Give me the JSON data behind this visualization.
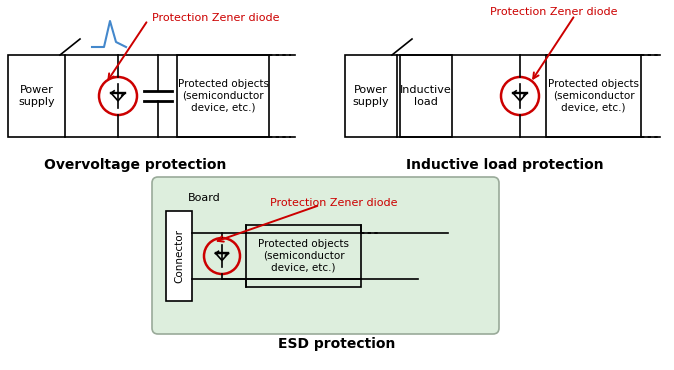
{
  "title1": "Overvoltage protection",
  "title2": "Inductive load protection",
  "title3": "ESD protection",
  "label_zener": "Protection Zener diode",
  "label_power": "Power\nsupply",
  "label_protected": "Protected objects\n(semiconductor\ndevice, etc.)",
  "label_protected2": "Protected objects\n(semiconductor\ndevice, etc.)",
  "label_protected3": "Protected objects\n(semiconductor\ndevice, etc.)",
  "label_inductive": "Inductive\nload",
  "label_board": "Board",
  "label_connector": "Connector",
  "color_red": "#cc0000",
  "color_blue": "#4488cc",
  "color_black": "#000000",
  "color_board_fill": "#ddeedd",
  "color_board_border": "#99aa99",
  "bg_color": "#ffffff"
}
